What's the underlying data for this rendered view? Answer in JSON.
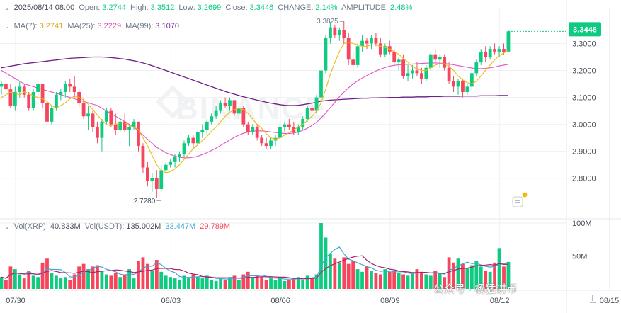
{
  "header": {
    "date": "2025/08/14 08:00",
    "open_label": "Open:",
    "open": "3.2744",
    "high_label": "High:",
    "high": "3.3512",
    "low_label": "Low:",
    "low": "3.2699",
    "close_label": "Close:",
    "close": "3.3446",
    "change_label": "CHANGE:",
    "change": "2.14%",
    "amplitude_label": "AMPLITUDE:",
    "amplitude": "2.48%"
  },
  "ma_legend": {
    "ma7_label": "MA(7):",
    "ma7": "3.2741",
    "ma25_label": "MA(25):",
    "ma25": "3.2229",
    "ma99_label": "MA(99):",
    "ma99": "3.1070"
  },
  "vol_legend": {
    "vol_xrp_label": "Vol(XRP):",
    "vol_xrp": "40.833M",
    "vol_usdt_label": "Vol(USDT):",
    "vol_usdt": "135.002M",
    "ma1": "33.447M",
    "ma2": "29.789M"
  },
  "watermark": "公众号 · 杨猛讲币",
  "colors": {
    "up": "#0ecb81",
    "down": "#f6465d",
    "ma7": "#f0b90b",
    "ma25": "#e052c6",
    "ma99": "#6f1f86",
    "vol_ma1": "#3fa9d6",
    "vol_ma2": "#b0206a",
    "grid": "#eef0f2",
    "axis_text": "#474d57",
    "price_tag": "#0ecb81"
  },
  "chart_data": {
    "type": "candlestick",
    "symbol": "XRP/USDT",
    "interval": "4h",
    "x_ticks": [
      "07/30",
      "08/03",
      "08/06",
      "08/09",
      "08/12",
      "08/15"
    ],
    "x_tick_index": [
      0,
      34,
      58,
      82,
      106,
      130
    ],
    "price_axis": {
      "ticks": [
        "3.3000",
        "3.2000",
        "3.1000",
        "3.0000",
        "2.9000",
        "2.8000"
      ],
      "ylim": [
        2.66,
        3.43
      ]
    },
    "volume_axis": {
      "ticks": [
        "100M",
        "50M"
      ],
      "ylim": [
        0,
        100
      ]
    },
    "last_price_tag": "3.3446",
    "annotations": {
      "high_label": "3.3825",
      "high_index": 75,
      "low_label": "2.7280",
      "low_index": 34
    },
    "candles_ohlc": [
      [
        3.14,
        3.16,
        3.11,
        3.15
      ],
      [
        3.15,
        3.18,
        3.12,
        3.13
      ],
      [
        3.13,
        3.15,
        3.06,
        3.07
      ],
      [
        3.07,
        3.14,
        3.05,
        3.12
      ],
      [
        3.12,
        3.16,
        3.1,
        3.14
      ],
      [
        3.14,
        3.15,
        3.1,
        3.11
      ],
      [
        3.11,
        3.12,
        3.05,
        3.06
      ],
      [
        3.06,
        3.13,
        3.05,
        3.12
      ],
      [
        3.12,
        3.16,
        3.1,
        3.15
      ],
      [
        3.15,
        3.15,
        3.06,
        3.08
      ],
      [
        3.08,
        3.1,
        3.0,
        3.01
      ],
      [
        3.01,
        3.07,
        3.0,
        3.06
      ],
      [
        3.06,
        3.12,
        3.05,
        3.11
      ],
      [
        3.11,
        3.13,
        3.09,
        3.12
      ],
      [
        3.12,
        3.16,
        3.1,
        3.15
      ],
      [
        3.15,
        3.17,
        3.12,
        3.14
      ],
      [
        3.14,
        3.18,
        3.1,
        3.12
      ],
      [
        3.12,
        3.13,
        3.06,
        3.08
      ],
      [
        3.08,
        3.1,
        3.02,
        3.03
      ],
      [
        3.03,
        3.07,
        2.98,
        3.04
      ],
      [
        3.04,
        3.05,
        2.97,
        2.99
      ],
      [
        2.99,
        3.01,
        2.93,
        2.95
      ],
      [
        2.95,
        3.02,
        2.9,
        3.01
      ],
      [
        3.01,
        3.06,
        3.0,
        3.05
      ],
      [
        3.05,
        3.06,
        2.99,
        3.0
      ],
      [
        3.0,
        3.04,
        2.96,
        2.98
      ],
      [
        2.98,
        3.02,
        2.97,
        3.01
      ],
      [
        3.01,
        3.04,
        2.97,
        2.98
      ],
      [
        2.98,
        3.0,
        2.92,
        2.99
      ],
      [
        2.99,
        3.02,
        2.98,
        3.01
      ],
      [
        3.01,
        3.01,
        2.9,
        2.92
      ],
      [
        2.92,
        2.93,
        2.82,
        2.84
      ],
      [
        2.84,
        2.86,
        2.77,
        2.79
      ],
      [
        2.79,
        2.82,
        2.75,
        2.8
      ],
      [
        2.8,
        2.83,
        2.728,
        2.76
      ],
      [
        2.76,
        2.85,
        2.75,
        2.83
      ],
      [
        2.83,
        2.86,
        2.82,
        2.85
      ],
      [
        2.85,
        2.87,
        2.84,
        2.86
      ],
      [
        2.86,
        2.89,
        2.84,
        2.88
      ],
      [
        2.88,
        2.9,
        2.86,
        2.89
      ],
      [
        2.89,
        2.94,
        2.88,
        2.93
      ],
      [
        2.93,
        2.96,
        2.92,
        2.95
      ],
      [
        2.95,
        2.96,
        2.91,
        2.93
      ],
      [
        2.93,
        2.98,
        2.92,
        2.97
      ],
      [
        2.97,
        3.0,
        2.95,
        2.98
      ],
      [
        2.98,
        3.02,
        2.96,
        3.01
      ],
      [
        3.01,
        3.04,
        3.0,
        3.03
      ],
      [
        3.03,
        3.07,
        3.02,
        3.05
      ],
      [
        3.05,
        3.09,
        3.04,
        3.08
      ],
      [
        3.08,
        3.1,
        3.06,
        3.07
      ],
      [
        3.07,
        3.1,
        3.05,
        3.09
      ],
      [
        3.09,
        3.09,
        3.03,
        3.04
      ],
      [
        3.04,
        3.07,
        3.02,
        3.06
      ],
      [
        3.06,
        3.07,
        2.99,
        3.0
      ],
      [
        3.0,
        3.01,
        2.96,
        2.97
      ],
      [
        2.97,
        3.0,
        2.96,
        2.99
      ],
      [
        2.99,
        3.0,
        2.94,
        2.95
      ],
      [
        2.95,
        2.96,
        2.92,
        2.93
      ],
      [
        2.93,
        2.95,
        2.91,
        2.92
      ],
      [
        2.92,
        2.95,
        2.91,
        2.94
      ],
      [
        2.94,
        2.96,
        2.92,
        2.95
      ],
      [
        2.95,
        3.0,
        2.94,
        2.99
      ],
      [
        2.99,
        3.01,
        2.97,
        3.0
      ],
      [
        3.0,
        3.02,
        2.98,
        2.99
      ],
      [
        2.99,
        3.01,
        2.96,
        2.97
      ],
      [
        2.97,
        3.0,
        2.96,
        2.99
      ],
      [
        2.99,
        3.03,
        2.98,
        3.02
      ],
      [
        3.02,
        3.07,
        3.01,
        3.06
      ],
      [
        3.06,
        3.08,
        3.04,
        3.05
      ],
      [
        3.05,
        3.11,
        3.04,
        3.1
      ],
      [
        3.1,
        3.21,
        3.09,
        3.2
      ],
      [
        3.2,
        3.33,
        3.19,
        3.32
      ],
      [
        3.32,
        3.38,
        3.3,
        3.36
      ],
      [
        3.36,
        3.37,
        3.32,
        3.33
      ],
      [
        3.33,
        3.36,
        3.31,
        3.35
      ],
      [
        3.35,
        3.3825,
        3.3,
        3.32
      ],
      [
        3.32,
        3.34,
        3.22,
        3.24
      ],
      [
        3.24,
        3.27,
        3.2,
        3.22
      ],
      [
        3.22,
        3.3,
        3.21,
        3.29
      ],
      [
        3.29,
        3.33,
        3.27,
        3.31
      ],
      [
        3.31,
        3.32,
        3.28,
        3.3
      ],
      [
        3.3,
        3.33,
        3.28,
        3.32
      ],
      [
        3.32,
        3.34,
        3.29,
        3.3
      ],
      [
        3.3,
        3.32,
        3.25,
        3.26
      ],
      [
        3.26,
        3.3,
        3.25,
        3.29
      ],
      [
        3.29,
        3.31,
        3.26,
        3.27
      ],
      [
        3.27,
        3.28,
        3.22,
        3.23
      ],
      [
        3.23,
        3.25,
        3.2,
        3.24
      ],
      [
        3.24,
        3.26,
        3.17,
        3.18
      ],
      [
        3.18,
        3.22,
        3.16,
        3.19
      ],
      [
        3.19,
        3.22,
        3.17,
        3.2
      ],
      [
        3.2,
        3.23,
        3.18,
        3.19
      ],
      [
        3.19,
        3.21,
        3.15,
        3.17
      ],
      [
        3.17,
        3.22,
        3.16,
        3.21
      ],
      [
        3.21,
        3.27,
        3.2,
        3.26
      ],
      [
        3.26,
        3.28,
        3.23,
        3.24
      ],
      [
        3.24,
        3.26,
        3.21,
        3.25
      ],
      [
        3.25,
        3.26,
        3.2,
        3.21
      ],
      [
        3.21,
        3.23,
        3.15,
        3.16
      ],
      [
        3.16,
        3.18,
        3.12,
        3.14
      ],
      [
        3.14,
        3.17,
        3.11,
        3.16
      ],
      [
        3.16,
        3.17,
        3.1,
        3.12
      ],
      [
        3.12,
        3.15,
        3.11,
        3.14
      ],
      [
        3.14,
        3.2,
        3.13,
        3.19
      ],
      [
        3.19,
        3.24,
        3.18,
        3.23
      ],
      [
        3.23,
        3.28,
        3.22,
        3.27
      ],
      [
        3.27,
        3.29,
        3.23,
        3.25
      ],
      [
        3.25,
        3.29,
        3.24,
        3.28
      ],
      [
        3.28,
        3.3,
        3.26,
        3.27
      ],
      [
        3.27,
        3.29,
        3.25,
        3.28
      ],
      [
        3.28,
        3.3,
        3.26,
        3.27
      ],
      [
        3.27,
        3.35,
        3.27,
        3.345
      ]
    ],
    "volume_millions": [
      18,
      14,
      34,
      30,
      22,
      16,
      28,
      20,
      18,
      40,
      46,
      24,
      20,
      16,
      18,
      14,
      22,
      34,
      38,
      30,
      34,
      36,
      28,
      22,
      20,
      24,
      18,
      22,
      30,
      16,
      42,
      48,
      38,
      28,
      44,
      26,
      20,
      18,
      16,
      14,
      20,
      18,
      22,
      18,
      16,
      20,
      14,
      12,
      16,
      14,
      18,
      20,
      14,
      22,
      26,
      18,
      20,
      18,
      14,
      16,
      14,
      18,
      12,
      14,
      16,
      18,
      14,
      20,
      16,
      22,
      100,
      78,
      54,
      46,
      40,
      48,
      38,
      42,
      30,
      26,
      34,
      28,
      24,
      22,
      30,
      26,
      28,
      24,
      22,
      20,
      24,
      30,
      26,
      22,
      20,
      28,
      24,
      18,
      48,
      40,
      46,
      38,
      32,
      36,
      42,
      34,
      28,
      26,
      40,
      62,
      34,
      41
    ],
    "ma7_values": [
      3.1,
      3.11,
      3.12,
      3.115,
      3.11,
      3.12,
      3.115,
      3.105,
      3.1,
      3.095,
      3.085,
      3.07,
      3.06,
      3.07,
      3.08,
      3.095,
      3.105,
      3.1,
      3.09,
      3.075,
      3.055,
      3.035,
      3.015,
      3.0,
      2.995,
      3.0,
      3.005,
      3.005,
      2.995,
      2.99,
      2.98,
      2.95,
      2.92,
      2.885,
      2.85,
      2.83,
      2.82,
      2.825,
      2.835,
      2.85,
      2.87,
      2.89,
      2.91,
      2.925,
      2.94,
      2.955,
      2.975,
      2.99,
      3.01,
      3.03,
      3.045,
      3.055,
      3.06,
      3.055,
      3.04,
      3.02,
      3.0,
      2.985,
      2.965,
      2.95,
      2.945,
      2.95,
      2.96,
      2.97,
      2.98,
      2.99,
      3.0,
      3.015,
      3.03,
      3.05,
      3.08,
      3.13,
      3.185,
      3.23,
      3.27,
      3.3,
      3.305,
      3.3,
      3.295,
      3.29,
      3.29,
      3.295,
      3.295,
      3.29,
      3.285,
      3.28,
      3.27,
      3.26,
      3.245,
      3.23,
      3.215,
      3.205,
      3.2,
      3.2,
      3.21,
      3.22,
      3.225,
      3.225,
      3.215,
      3.2,
      3.18,
      3.165,
      3.155,
      3.15,
      3.16,
      3.18,
      3.2,
      3.22,
      3.24,
      3.255,
      3.265,
      3.274
    ],
    "ma25_values": [
      3.2,
      3.19,
      3.18,
      3.17,
      3.16,
      3.15,
      3.145,
      3.14,
      3.135,
      3.13,
      3.125,
      3.12,
      3.115,
      3.11,
      3.105,
      3.1,
      3.095,
      3.09,
      3.085,
      3.08,
      3.075,
      3.07,
      3.06,
      3.05,
      3.04,
      3.03,
      3.02,
      3.01,
      3.0,
      2.99,
      2.975,
      2.96,
      2.945,
      2.93,
      2.915,
      2.905,
      2.895,
      2.888,
      2.882,
      2.878,
      2.876,
      2.876,
      2.878,
      2.882,
      2.888,
      2.895,
      2.903,
      2.912,
      2.922,
      2.932,
      2.942,
      2.952,
      2.96,
      2.967,
      2.972,
      2.975,
      2.976,
      2.976,
      2.974,
      2.972,
      2.97,
      2.968,
      2.966,
      2.966,
      2.968,
      2.972,
      2.978,
      2.986,
      2.996,
      3.008,
      3.024,
      3.042,
      3.062,
      3.082,
      3.102,
      3.12,
      3.136,
      3.15,
      3.162,
      3.172,
      3.181,
      3.19,
      3.198,
      3.205,
      3.211,
      3.216,
      3.219,
      3.221,
      3.222,
      3.223,
      3.224,
      3.225,
      3.226,
      3.227,
      3.228,
      3.228,
      3.227,
      3.226,
      3.224,
      3.221,
      3.218,
      3.215,
      3.212,
      3.209,
      3.207,
      3.207,
      3.208,
      3.21,
      3.213,
      3.217,
      3.22,
      3.223
    ],
    "ma99_values": [
      3.21,
      3.213,
      3.216,
      3.219,
      3.222,
      3.225,
      3.227,
      3.229,
      3.231,
      3.233,
      3.235,
      3.237,
      3.239,
      3.241,
      3.243,
      3.245,
      3.246,
      3.247,
      3.248,
      3.249,
      3.25,
      3.25,
      3.25,
      3.249,
      3.248,
      3.246,
      3.244,
      3.242,
      3.239,
      3.236,
      3.232,
      3.228,
      3.223,
      3.218,
      3.212,
      3.206,
      3.2,
      3.194,
      3.188,
      3.182,
      3.176,
      3.17,
      3.164,
      3.158,
      3.152,
      3.146,
      3.14,
      3.134,
      3.128,
      3.122,
      3.117,
      3.112,
      3.107,
      3.102,
      3.098,
      3.094,
      3.09,
      3.086,
      3.082,
      3.079,
      3.076,
      3.073,
      3.071,
      3.07,
      3.07,
      3.071,
      3.073,
      3.076,
      3.079,
      3.082,
      3.086,
      3.088,
      3.09,
      3.091,
      3.092,
      3.093,
      3.094,
      3.095,
      3.096,
      3.097,
      3.097,
      3.098,
      3.098,
      3.099,
      3.099,
      3.1,
      3.1,
      3.1,
      3.101,
      3.101,
      3.101,
      3.102,
      3.102,
      3.102,
      3.103,
      3.103,
      3.103,
      3.104,
      3.104,
      3.104,
      3.104,
      3.105,
      3.105,
      3.105,
      3.105,
      3.106,
      3.106,
      3.106,
      3.106,
      3.107,
      3.107,
      3.107
    ]
  }
}
